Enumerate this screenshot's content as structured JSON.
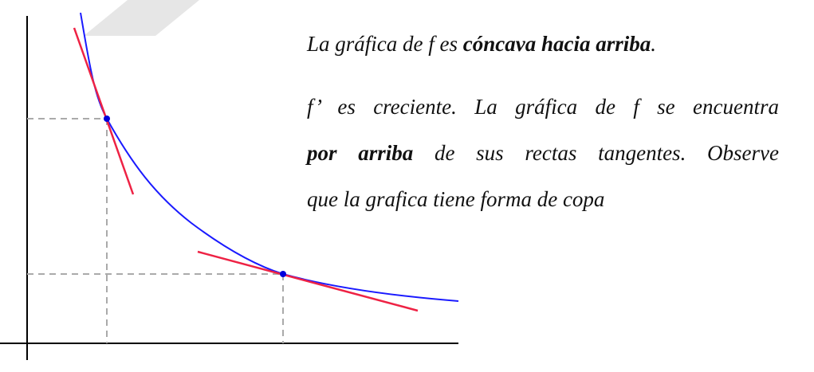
{
  "text": {
    "line1": {
      "pre": "La gráfica de f es ",
      "bold": "cóncava hacia arriba",
      "post": "."
    },
    "line2": "f’ es creciente. La gráfica de f se encuentra",
    "line3": {
      "bold": "por arriba",
      "post": " de sus rectas tangentes. Observe"
    },
    "line4": "que la grafica tiene forma de copa"
  },
  "colors": {
    "curve": "#1a1aff",
    "tangent": "#ee2244",
    "point": "#0000dd",
    "guide": "#aaaaaa",
    "axis": "#000000",
    "watermark": "#e6e6e6"
  }
}
